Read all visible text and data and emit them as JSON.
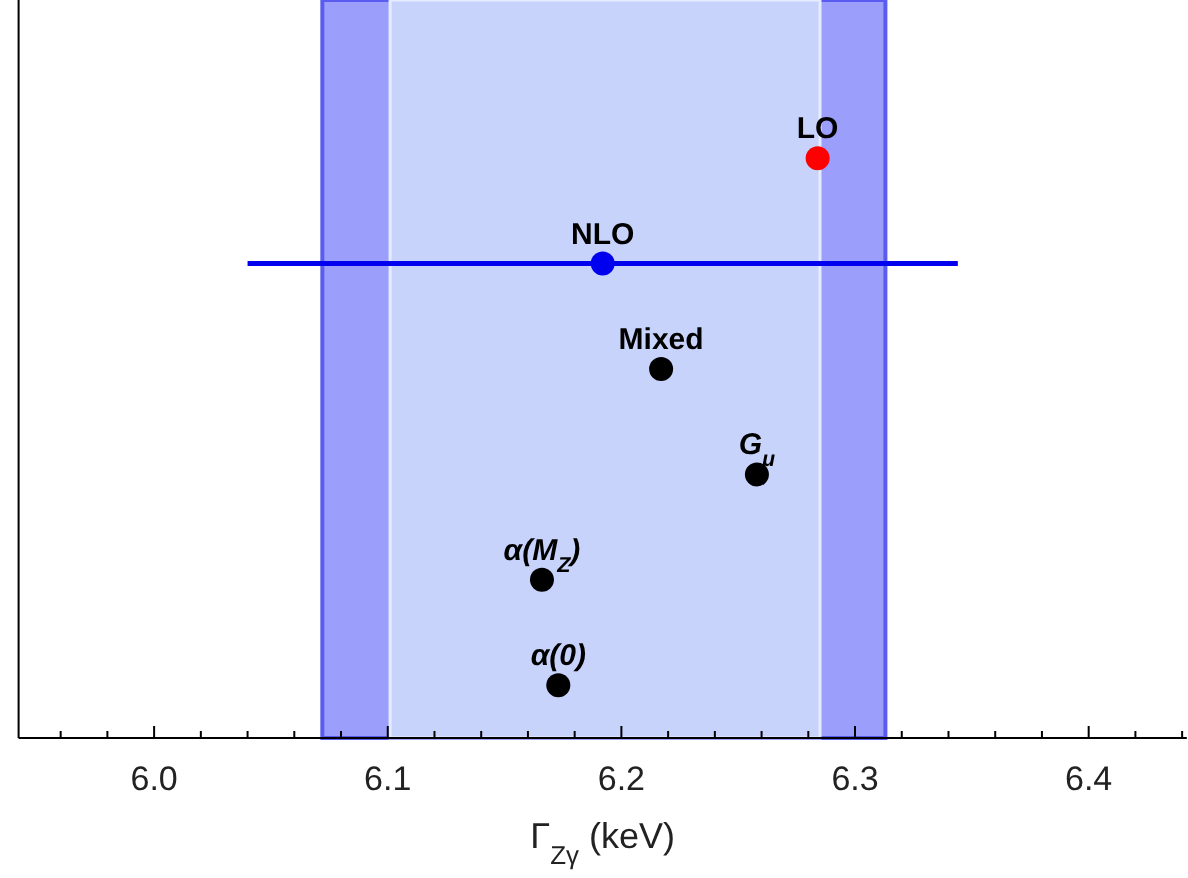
{
  "chart_data": {
    "type": "scatter",
    "orientation": "horizontal",
    "xlabel": "Γ$_{Zγ}$ (keV)",
    "xlim": [
      5.942,
      6.442
    ],
    "categories": [
      null,
      null,
      null,
      null,
      null,
      null,
      null
    ],
    "xticks": [
      {
        "value": 5.96,
        "label": null
      },
      {
        "value": 5.98,
        "label": null
      },
      {
        "value": 6,
        "label": "6.0"
      },
      {
        "value": 6.02,
        "label": null
      },
      {
        "value": 6.04,
        "label": null
      },
      {
        "value": 6.06,
        "label": null
      },
      {
        "value": 6.08,
        "label": null
      },
      {
        "value": 6.1,
        "label": "6.1"
      },
      {
        "value": 6.12,
        "label": null
      },
      {
        "value": 6.14,
        "label": null
      },
      {
        "value": 6.16,
        "label": null
      },
      {
        "value": 6.18,
        "label": null
      },
      {
        "value": 6.2,
        "label": "6.2"
      },
      {
        "value": 6.22,
        "label": null
      },
      {
        "value": 6.24,
        "label": null
      },
      {
        "value": 6.26,
        "label": null
      },
      {
        "value": 6.28,
        "label": null
      },
      {
        "value": 6.3,
        "label": "6.3"
      },
      {
        "value": 6.32,
        "label": null
      },
      {
        "value": 6.34,
        "label": null
      },
      {
        "value": 6.36,
        "label": null
      },
      {
        "value": 6.38,
        "label": null
      },
      {
        "value": 6.4,
        "label": "6.4"
      },
      {
        "value": 6.42,
        "label": null
      },
      {
        "value": 6.44,
        "label": null
      }
    ],
    "tick_labels": "x",
    "marker": "circle",
    "grid": false,
    "bands": [
      {
        "axis": "x",
        "from": 6.072,
        "to": 6.313,
        "color": "#9c9efc"
      },
      {
        "axis": "x",
        "from": 6.101,
        "to": 6.285,
        "color": "#c8d3fc"
      }
    ],
    "series": [
      {
        "name": "LO",
        "color": "#ff0000",
        "values": [
          null,
          6.284,
          null,
          null,
          null,
          null,
          null
        ]
      },
      {
        "name": "NLO",
        "color": "#0000ee",
        "values": [
          null,
          null,
          6.192,
          null,
          null,
          null,
          null
        ],
        "errors": [
          null,
          null,
          [
            6.04,
            6.344
          ],
          null,
          null,
          null,
          null
        ]
      },
      {
        "name": "Mixed",
        "color": "#000000",
        "values": [
          null,
          null,
          null,
          6.217,
          null,
          null,
          null
        ]
      },
      {
        "name": "G$_{μ}$",
        "color": "#000000",
        "values": [
          null,
          null,
          null,
          null,
          6.258,
          null,
          null
        ]
      },
      {
        "name": "α(M$_{Z}$)",
        "color": "#000000",
        "values": [
          null,
          null,
          null,
          null,
          null,
          6.166,
          null
        ]
      },
      {
        "name": "α(0)",
        "color": "#000000",
        "values": [
          null,
          null,
          null,
          null,
          null,
          null,
          6.173
        ]
      }
    ]
  }
}
